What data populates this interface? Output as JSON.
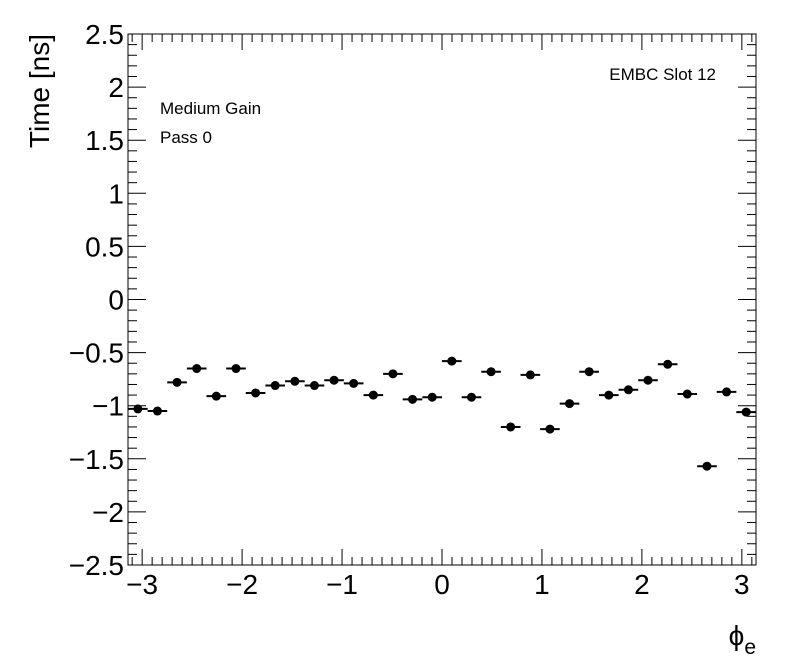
{
  "chart_data": {
    "type": "scatter",
    "ylabel": "Time [ns]",
    "xlabel_main": "ϕ",
    "xlabel_sub": "e",
    "annotations": [
      "Medium Gain",
      "Pass 0",
      "EMBC Slot 12"
    ],
    "xlim": [
      -3.14159,
      3.14159
    ],
    "ylim": [
      -2.5,
      2.5
    ],
    "x_ticks": [
      -3,
      -2,
      -1,
      0,
      1,
      2,
      3
    ],
    "x_tick_labels": [
      "−3",
      "−2",
      "−1",
      "0",
      "1",
      "2",
      "3"
    ],
    "y_ticks": [
      -2.5,
      -2,
      -1.5,
      -1,
      -0.5,
      0,
      0.5,
      1,
      1.5,
      2,
      2.5
    ],
    "y_tick_labels": [
      "−2.5",
      "−2",
      "−1.5",
      "−1",
      "−0.5",
      "0",
      "0.5",
      "1",
      "1.5",
      "2",
      "2.5"
    ],
    "bin_half_width": 0.0982,
    "x": [
      -3.043,
      -2.847,
      -2.651,
      -2.454,
      -2.258,
      -2.061,
      -1.865,
      -1.669,
      -1.472,
      -1.276,
      -1.08,
      -0.884,
      -0.687,
      -0.491,
      -0.295,
      -0.098,
      0.098,
      0.295,
      0.491,
      0.687,
      0.884,
      1.08,
      1.276,
      1.472,
      1.669,
      1.865,
      2.061,
      2.258,
      2.454,
      2.651,
      2.847,
      3.043
    ],
    "y": [
      -1.03,
      -1.05,
      -0.78,
      -0.65,
      -0.91,
      -0.65,
      -0.88,
      -0.81,
      -0.77,
      -0.81,
      -0.76,
      -0.79,
      -0.9,
      -0.7,
      -0.94,
      -0.92,
      -0.58,
      -0.92,
      -0.68,
      -1.2,
      -0.71,
      -1.22,
      -0.98,
      -0.68,
      -0.9,
      -0.85,
      -0.76,
      -0.61,
      -0.89,
      -1.57,
      -0.87,
      -1.06
    ]
  }
}
